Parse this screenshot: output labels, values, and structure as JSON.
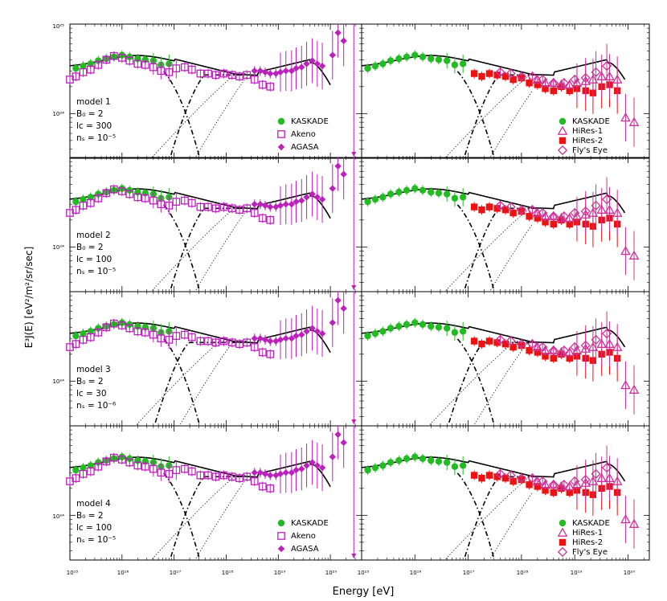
{
  "figure": {
    "xlabel": "Energy [eV]",
    "ylabel": "E³J(E) [eV²/m²/sr/sec]",
    "x_ticks": [
      "10¹⁵",
      "10¹⁶",
      "10¹⁷",
      "10¹⁸",
      "10¹⁹",
      "10²⁰"
    ],
    "y_ticks": [
      "10²⁵",
      "10²⁴"
    ]
  },
  "colors": {
    "kaskade": "#22bb22",
    "akeno": "#bb22bb",
    "agasa": "#bb22bb",
    "hires1": "#cc3399",
    "hires2": "#ee1111",
    "flyseye": "#cc3399",
    "model": "#000000"
  },
  "models": [
    {
      "name": "model 1",
      "B": "B₀ = 2",
      "lc": "lc = 300",
      "ns": "nₛ = 10⁻⁵"
    },
    {
      "name": "model 2",
      "B": "B₀ = 2",
      "lc": "lc = 100",
      "ns": "nₛ = 10⁻⁵"
    },
    {
      "name": "model 3",
      "B": "B₀ = 2",
      "lc": "lc = 30",
      "ns": "nₛ = 10⁻⁶"
    },
    {
      "name": "model 4",
      "B": "B₀ = 2",
      "lc": "lc = 100",
      "ns": "nₛ = 10⁻⁵"
    }
  ],
  "legends": {
    "left": [
      "KASKADE",
      "Akeno",
      "AGASA"
    ],
    "right": [
      "KASKADE",
      "HiRes-1",
      "HiRes-2",
      "Fly's Eye"
    ]
  },
  "chart_data": {
    "type": "scatter",
    "xscale": "log",
    "yscale": "log",
    "xlim": [
      1000000000000000.0,
      2e+20
    ],
    "ylim": [
      3e+23,
      1e+25
    ],
    "series": [
      {
        "name": "KASKADE",
        "marker": "filled-circle",
        "x": [
          1300000000000000.0,
          1800000000000000.0,
          2500000000000000.0,
          3500000000000000.0,
          5000000000000000.0,
          7000000000000000.0,
          1e+16,
          1.4e+16,
          2e+16,
          2.8e+16,
          4e+16,
          5.6e+16,
          8e+16
        ],
        "y": [
          3.2e+24,
          3.4e+24,
          3.6e+24,
          3.9e+24,
          4.1e+24,
          4.3e+24,
          4.5e+24,
          4.3e+24,
          4.1e+24,
          4e+24,
          3.9e+24,
          3.5e+24,
          3.6e+24
        ]
      },
      {
        "name": "Akeno",
        "marker": "open-square",
        "x": [
          1000000000000000.0,
          1300000000000000.0,
          1800000000000000.0,
          2500000000000000.0,
          3500000000000000.0,
          5000000000000000.0,
          7000000000000000.0,
          1e+16,
          1.4e+16,
          2e+16,
          2.8e+16,
          4e+16,
          5.6e+16,
          8e+16,
          1.1e+17,
          1.6e+17,
          2.2e+17,
          3.2e+17,
          4.5e+17,
          6.3e+17,
          9e+17,
          1.3e+18,
          1.8e+18,
          2.5e+18,
          3.5e+18,
          5e+18,
          7e+18
        ],
        "y": [
          2.4e+24,
          2.6e+24,
          2.9e+24,
          3.1e+24,
          3.5e+24,
          4e+24,
          4.4e+24,
          4.2e+24,
          3.9e+24,
          3.6e+24,
          3.5e+24,
          3.3e+24,
          3e+24,
          2.9e+24,
          3.2e+24,
          3.3e+24,
          3.1e+24,
          2.8e+24,
          2.8e+24,
          2.7e+24,
          2.8e+24,
          2.7e+24,
          2.6e+24,
          2.7e+24,
          2.4e+24,
          2.1e+24,
          2e+24
        ]
      },
      {
        "name": "AGASA",
        "marker": "filled-diamond",
        "x": [
          3.5e+18,
          4.5e+18,
          5.6e+18,
          7e+18,
          9e+18,
          1.1e+19,
          1.4e+19,
          1.8e+19,
          2.2e+19,
          2.8e+19,
          3.5e+19,
          4.5e+19,
          5.6e+19,
          7e+19,
          1.1e+20,
          1.4e+20,
          1.8e+20
        ],
        "y": [
          3e+24,
          3e+24,
          2.9e+24,
          2.8e+24,
          2.8e+24,
          2.9e+24,
          3e+24,
          3e+24,
          3.2e+24,
          3.3e+24,
          3.6e+24,
          3.9e+24,
          3.6e+24,
          3.4e+24,
          4.5e+24,
          8e+24,
          6.5e+24
        ]
      },
      {
        "name": "HiRes-1",
        "marker": "open-triangle",
        "x": [
          2e+18,
          2.8e+18,
          4e+18,
          5.6e+18,
          8e+18,
          1.1e+19,
          1.6e+19,
          2.2e+19,
          3.2e+19,
          4.5e+19,
          6.3e+19,
          9e+19,
          1.3e+20
        ],
        "y": [
          2.4e+24,
          2.2e+24,
          2.2e+24,
          2.1e+24,
          2.1e+24,
          2.2e+24,
          2.3e+24,
          2.4e+24,
          2.6e+24,
          2.6e+24,
          2.4e+24,
          9e+23,
          8e+23
        ]
      },
      {
        "name": "HiRes-2",
        "marker": "filled-square",
        "x": [
          1.3e+17,
          1.8e+17,
          2.5e+17,
          3.5e+17,
          5e+17,
          7e+17,
          1e+18,
          1.4e+18,
          2e+18,
          2.8e+18,
          4e+18,
          5.6e+18,
          8e+18,
          1.1e+19,
          1.6e+19,
          2.2e+19,
          3.2e+19,
          4.5e+19,
          6.3e+19
        ],
        "y": [
          2.8e+24,
          2.6e+24,
          2.8e+24,
          2.7e+24,
          2.6e+24,
          2.4e+24,
          2.5e+24,
          2.2e+24,
          2.1e+24,
          1.9e+24,
          1.8e+24,
          2e+24,
          1.8e+24,
          1.9e+24,
          1.8e+24,
          1.7e+24,
          2e+24,
          2.1e+24,
          1.8e+24
        ]
      },
      {
        "name": "Fly's Eye",
        "marker": "open-diamond",
        "x": [
          4e+17,
          6.3e+17,
          1e+18,
          1.6e+18,
          2.5e+18,
          4e+18,
          6.3e+18,
          1e+19,
          1.6e+19,
          2.5e+19,
          4e+19
        ],
        "y": [
          2.9e+24,
          2.8e+24,
          2.6e+24,
          2.6e+24,
          2.4e+24,
          2.2e+24,
          2.2e+24,
          2.4e+24,
          2.5e+24,
          2.9e+24,
          3.4e+24
        ]
      }
    ]
  }
}
